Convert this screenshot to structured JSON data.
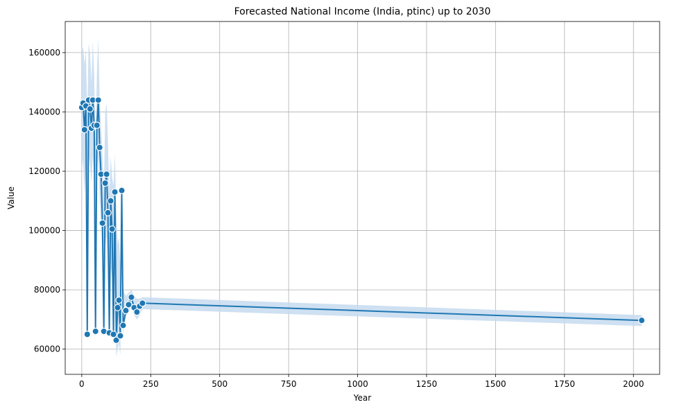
{
  "chart_data": {
    "type": "line",
    "title": "Forecasted National Income (India, ptinc) up to 2030",
    "xlabel": "Year",
    "ylabel": "Value",
    "xlim": [
      -60,
      2095
    ],
    "ylim": [
      51500,
      170500
    ],
    "xticks": [
      0,
      250,
      500,
      750,
      1000,
      1250,
      1500,
      1750,
      2000
    ],
    "yticks": [
      60000,
      80000,
      100000,
      120000,
      140000,
      160000
    ],
    "grid": true,
    "colors": {
      "line": "#1f77b4",
      "band": "#c6dbef",
      "marker_edge": "#ffffff",
      "grid": "#b0b0b0"
    },
    "series": [
      {
        "marker": "circle",
        "x": [
          0,
          5,
          10,
          15,
          20,
          25,
          30,
          35,
          40,
          45,
          50,
          55,
          60,
          65,
          70,
          75,
          80,
          85,
          90,
          95,
          100,
          105,
          110,
          115,
          120,
          125,
          130,
          135,
          140,
          145,
          150,
          160,
          170,
          180,
          190,
          200,
          210,
          220,
          2030
        ],
        "y": [
          141500,
          143000,
          134000,
          142000,
          65000,
          144000,
          141000,
          134500,
          144000,
          135500,
          66000,
          135500,
          144000,
          128000,
          119000,
          102500,
          66000,
          116000,
          119000,
          106000,
          65500,
          110000,
          100500,
          65000,
          113000,
          63000,
          74000,
          76500,
          64500,
          113500,
          68000,
          73000,
          75000,
          77500,
          74000,
          72500,
          74500,
          75500,
          69700
        ],
        "band_upper": [
          160000,
          162000,
          156000,
          161000,
          139000,
          163000,
          160000,
          150000,
          164000,
          152000,
          128000,
          153000,
          165000,
          145000,
          135000,
          125000,
          112000,
          140000,
          143000,
          130000,
          113000,
          125000,
          118000,
          115000,
          126000,
          108000,
          95000,
          98000,
          88000,
          118000,
          80000,
          78000,
          79000,
          80000,
          78000,
          77000,
          77000,
          77500,
          71500
        ],
        "band_lower": [
          120000,
          124000,
          112000,
          122000,
          64000,
          126000,
          122000,
          116000,
          125000,
          118000,
          64500,
          118000,
          125000,
          110000,
          102000,
          92000,
          64500,
          95000,
          98000,
          88000,
          63500,
          88000,
          84000,
          62000,
          90000,
          57500,
          60000,
          62000,
          58000,
          100000,
          65000,
          71000,
          72500,
          74500,
          71500,
          70000,
          71500,
          73500,
          67800
        ]
      }
    ]
  }
}
